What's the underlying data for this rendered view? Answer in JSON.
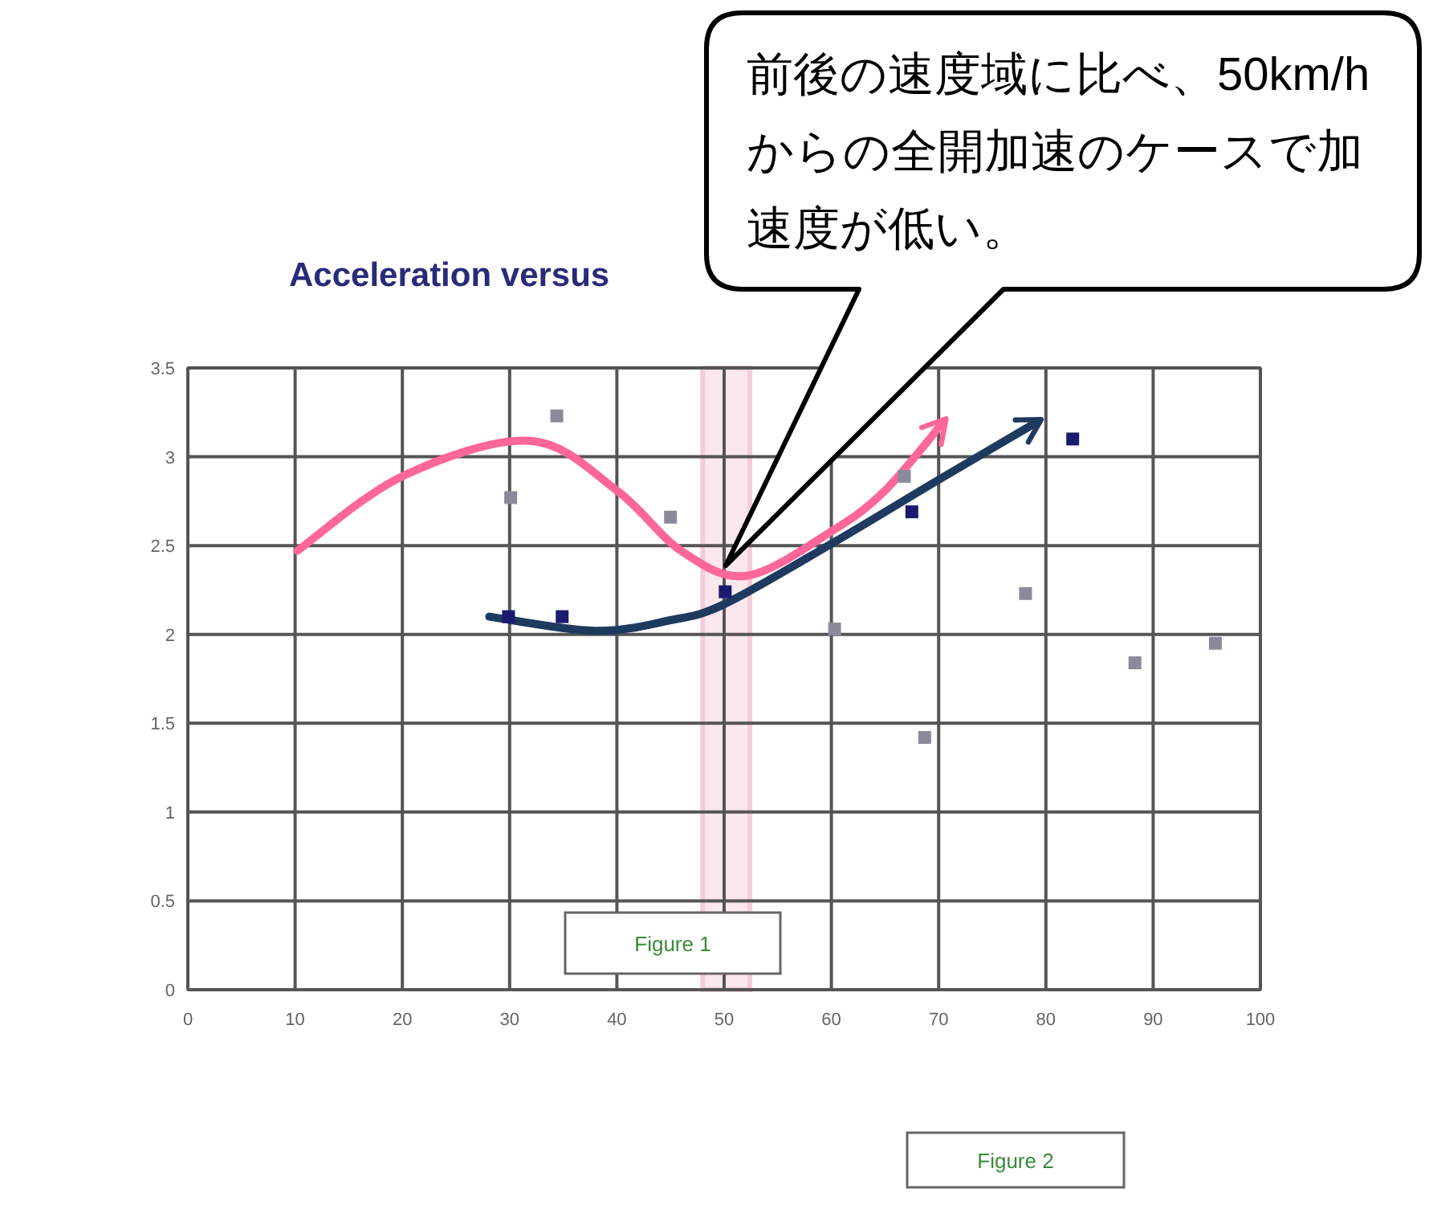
{
  "chart_data": {
    "type": "scatter",
    "title": "Acceleration versus",
    "series": [
      {
        "color": "#8a8a9a",
        "x": [
          30.1,
          34.4,
          45,
          60.3,
          66.8,
          68.7,
          78.1,
          88.3,
          95.8
        ],
        "values": [
          2.77,
          3.23,
          2.66,
          2.03,
          2.89,
          1.42,
          2.23,
          1.84,
          1.95
        ]
      },
      {
        "color": "#1a1a6e",
        "x": [
          29.9,
          34.9,
          50.1,
          67.5,
          82.5
        ],
        "values": [
          2.1,
          2.1,
          2.24,
          2.69,
          3.1
        ]
      },
      {
        "type": "line",
        "marker": "none",
        "color": "#ff6699",
        "x": [
          10.2,
          20,
          31.9,
          40,
          46,
          52.1,
          60,
          65,
          70.5
        ],
        "values": [
          2.47,
          2.89,
          3.09,
          2.81,
          2.47,
          2.33,
          2.58,
          2.81,
          3.2
        ]
      },
      {
        "type": "line",
        "marker": "none",
        "color": "#1f3a5f",
        "x": [
          28.1,
          37.9,
          45,
          50,
          60,
          70,
          79.3
        ],
        "values": [
          2.1,
          2.02,
          2.08,
          2.17,
          2.51,
          2.87,
          3.2
        ]
      }
    ],
    "marker": "square",
    "xlim": [
      0,
      100
    ],
    "xticks": [
      0,
      10,
      20,
      30,
      40,
      50,
      60,
      70,
      80,
      90,
      100
    ],
    "ylim": [
      0,
      3.5
    ],
    "yticks": [
      0,
      0.5,
      1,
      1.5,
      2,
      2.5,
      3,
      3.5
    ],
    "grid": true,
    "bands": [
      {
        "axis": "x",
        "from": 48,
        "to": 52.4,
        "color": "#f6ccd9"
      }
    ],
    "annotations": [
      "前後の速度域に比べ、50km/hからの全開加速のケースで加速度が低い。",
      "Figure 1",
      "Figure 2"
    ]
  }
}
